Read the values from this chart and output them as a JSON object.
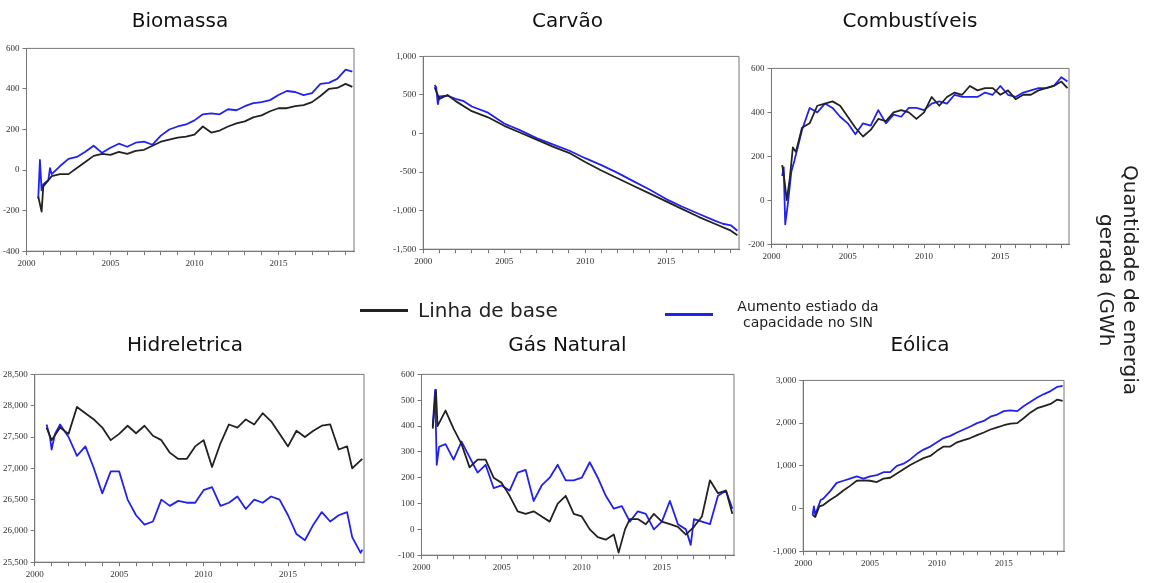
{
  "chart_data": [
    {
      "type": "line",
      "title": "Biomassa",
      "xlim": [
        2000,
        2019.5
      ],
      "ylim": [
        -400,
        600
      ],
      "yticks": [
        -400,
        -200,
        0,
        200,
        400,
        600
      ],
      "xticks": [
        2000,
        {
          "value": 2001,
          "label": null
        },
        {
          "value": 2002,
          "label": null
        },
        {
          "value": 2003,
          "label": null
        },
        {
          "value": 2004,
          "label": null
        },
        2005,
        {
          "value": 2006,
          "label": null
        },
        {
          "value": 2007,
          "label": null
        },
        {
          "value": 2008,
          "label": null
        },
        {
          "value": 2009,
          "label": null
        },
        2010,
        {
          "value": 2011,
          "label": null
        },
        {
          "value": 2012,
          "label": null
        },
        {
          "value": 2013,
          "label": null
        },
        {
          "value": 2014,
          "label": null
        },
        2015,
        {
          "value": 2016,
          "label": null
        },
        {
          "value": 2017,
          "label": null
        },
        {
          "value": 2018,
          "label": null
        },
        {
          "value": 2019,
          "label": null
        }
      ],
      "series": [
        {
          "color": "#222222",
          "x": [
            2000.7,
            2000.9,
            2001.0,
            2001.5,
            2002,
            2002.5,
            2003,
            2003.5,
            2004,
            2004.5,
            2005,
            2005.5,
            2006,
            2006.5,
            2007,
            2007.5,
            2008,
            2008.5,
            2009,
            2009.5,
            2010,
            2010.5,
            2011,
            2011.5,
            2012,
            2012.5,
            2013,
            2013.5,
            2014,
            2014.5,
            2015,
            2015.5,
            2016,
            2016.5,
            2017,
            2017.5,
            2018,
            2018.5,
            2019,
            2019.4
          ],
          "values": [
            -130,
            -205,
            -80,
            -30,
            -20,
            -20,
            10,
            40,
            70,
            80,
            75,
            90,
            80,
            95,
            100,
            120,
            140,
            150,
            160,
            165,
            175,
            215,
            185,
            195,
            215,
            230,
            240,
            260,
            270,
            290,
            305,
            305,
            315,
            320,
            335,
            365,
            400,
            405,
            425,
            410
          ]
        },
        {
          "color": "#2222ee",
          "x": [
            2000.7,
            2000.8,
            2000.9,
            2001.0,
            2001.3,
            2001.4,
            2001.5,
            2002,
            2002.5,
            2003,
            2003.5,
            2004,
            2004.5,
            2005,
            2005.5,
            2006,
            2006.5,
            2007,
            2007.5,
            2008,
            2008.5,
            2009,
            2009.5,
            2010,
            2010.5,
            2011,
            2011.5,
            2012,
            2012.5,
            2013,
            2013.5,
            2014,
            2014.5,
            2015,
            2015.5,
            2016,
            2016.5,
            2017,
            2017.5,
            2018,
            2018.5,
            2019,
            2019.4
          ],
          "values": [
            -140,
            50,
            -100,
            -70,
            -50,
            10,
            -20,
            20,
            55,
            65,
            90,
            120,
            85,
            110,
            130,
            115,
            135,
            140,
            125,
            170,
            200,
            215,
            225,
            245,
            275,
            280,
            275,
            300,
            295,
            315,
            330,
            335,
            345,
            370,
            390,
            385,
            370,
            380,
            425,
            430,
            450,
            495,
            485
          ]
        }
      ]
    },
    {
      "type": "line",
      "title": "Carvão",
      "xlim": [
        2000,
        2019.5
      ],
      "ylim": [
        -1500,
        1000
      ],
      "yticks": [
        {
          "value": -1500,
          "label": "-1,500"
        },
        {
          "value": -1000,
          "label": "-1,000"
        },
        -500,
        0,
        500,
        {
          "value": 1000,
          "label": "1,000"
        }
      ],
      "xticks": [
        2000,
        {
          "value": 2001,
          "label": null
        },
        {
          "value": 2002,
          "label": null
        },
        {
          "value": 2003,
          "label": null
        },
        {
          "value": 2004,
          "label": null
        },
        2005,
        {
          "value": 2006,
          "label": null
        },
        {
          "value": 2007,
          "label": null
        },
        {
          "value": 2008,
          "label": null
        },
        {
          "value": 2009,
          "label": null
        },
        2010,
        {
          "value": 2011,
          "label": null
        },
        {
          "value": 2012,
          "label": null
        },
        {
          "value": 2013,
          "label": null
        },
        {
          "value": 2014,
          "label": null
        },
        2015,
        {
          "value": 2016,
          "label": null
        },
        {
          "value": 2017,
          "label": null
        },
        {
          "value": 2018,
          "label": null
        },
        {
          "value": 2019,
          "label": null
        }
      ],
      "legend": "bottom",
      "series": [
        {
          "name": "Linha de base",
          "color": "#222222",
          "x": [
            2000.7,
            2001.0,
            2001.5,
            2002,
            2003,
            2004,
            2005,
            2006,
            2007,
            2008,
            2009,
            2010,
            2011,
            2012,
            2013,
            2014,
            2015,
            2016,
            2017,
            2018,
            2019,
            2019.4
          ],
          "values": [
            600,
            450,
            500,
            420,
            290,
            210,
            100,
            10,
            -80,
            -170,
            -250,
            -370,
            -480,
            -580,
            -680,
            -780,
            -880,
            -980,
            -1080,
            -1170,
            -1260,
            -1320
          ]
        },
        {
          "name": "Aumento estiado da capacidade no SIN",
          "color": "#2222ee",
          "x": [
            2000.7,
            2000.8,
            2000.9,
            2001.0,
            2001.5,
            2002,
            2002.5,
            2003,
            2004,
            2005,
            2006,
            2007,
            2008,
            2009,
            2010,
            2011,
            2012,
            2013,
            2014,
            2015,
            2016,
            2017,
            2018,
            2018.5,
            2019,
            2019.4
          ],
          "values": [
            630,
            600,
            380,
            480,
            490,
            450,
            420,
            350,
            270,
            130,
            40,
            -60,
            -140,
            -220,
            -320,
            -410,
            -510,
            -620,
            -730,
            -850,
            -950,
            -1040,
            -1130,
            -1170,
            -1190,
            -1260
          ]
        }
      ]
    },
    {
      "type": "line",
      "title": "Combustíveis",
      "ylabel": "Quantidade de energia gerada  (GWh",
      "xlim": [
        2000,
        2019.5
      ],
      "ylim": [
        -200,
        600
      ],
      "yticks": [
        -200,
        0,
        200,
        400,
        600
      ],
      "xticks": [
        2000,
        {
          "value": 2001,
          "label": null
        },
        {
          "value": 2002,
          "label": null
        },
        {
          "value": 2003,
          "label": null
        },
        {
          "value": 2004,
          "label": null
        },
        2005,
        {
          "value": 2006,
          "label": null
        },
        {
          "value": 2007,
          "label": null
        },
        {
          "value": 2008,
          "label": null
        },
        {
          "value": 2009,
          "label": null
        },
        2010,
        {
          "value": 2011,
          "label": null
        },
        {
          "value": 2012,
          "label": null
        },
        {
          "value": 2013,
          "label": null
        },
        {
          "value": 2014,
          "label": null
        },
        2015,
        {
          "value": 2016,
          "label": null
        },
        {
          "value": 2017,
          "label": null
        },
        {
          "value": 2018,
          "label": null
        },
        {
          "value": 2019,
          "label": null
        }
      ],
      "series": [
        {
          "color": "#222222",
          "x": [
            2000.7,
            2000.8,
            2001.0,
            2001.2,
            2001.4,
            2001.6,
            2002,
            2002.5,
            2003,
            2003.5,
            2004,
            2004.5,
            2005,
            2005.5,
            2006,
            2006.5,
            2007,
            2007.5,
            2008,
            2008.5,
            2009,
            2009.5,
            2010,
            2010.5,
            2011,
            2011.5,
            2012,
            2012.5,
            2013,
            2013.5,
            2014,
            2014.5,
            2015,
            2015.5,
            2016,
            2016.5,
            2017,
            2017.5,
            2018,
            2018.5,
            2019,
            2019.4
          ],
          "values": [
            160,
            120,
            0,
            100,
            240,
            220,
            330,
            350,
            430,
            440,
            450,
            430,
            380,
            330,
            290,
            320,
            370,
            360,
            400,
            410,
            400,
            370,
            400,
            470,
            430,
            470,
            490,
            480,
            520,
            500,
            510,
            510,
            480,
            500,
            460,
            480,
            480,
            500,
            510,
            520,
            540,
            510
          ]
        },
        {
          "color": "#2222ee",
          "x": [
            2000.7,
            2000.8,
            2000.9,
            2001.1,
            2001.3,
            2001.5,
            2002,
            2002.5,
            2003,
            2003.5,
            2004,
            2004.5,
            2005,
            2005.5,
            2006,
            2006.5,
            2007,
            2007.5,
            2008,
            2008.5,
            2009,
            2009.5,
            2010,
            2010.5,
            2011,
            2011.5,
            2012,
            2012.5,
            2013,
            2013.5,
            2014,
            2014.5,
            2015,
            2015.5,
            2016,
            2016.5,
            2017,
            2017.5,
            2018,
            2018.5,
            2019,
            2019.4
          ],
          "values": [
            110,
            150,
            -110,
            0,
            130,
            180,
            320,
            420,
            400,
            440,
            420,
            380,
            350,
            300,
            350,
            340,
            410,
            350,
            390,
            380,
            420,
            420,
            410,
            440,
            450,
            440,
            480,
            470,
            470,
            470,
            490,
            480,
            520,
            480,
            470,
            490,
            500,
            510,
            510,
            520,
            560,
            540
          ]
        }
      ]
    },
    {
      "type": "line",
      "title": "Hidreletrica",
      "xlim": [
        2000,
        2019.5
      ],
      "ylim": [
        25500,
        28500
      ],
      "yticks": [
        {
          "value": 25500,
          "label": "25,500"
        },
        {
          "value": 26000,
          "label": "26,000"
        },
        {
          "value": 26500,
          "label": "26,500"
        },
        {
          "value": 27000,
          "label": "27,000"
        },
        {
          "value": 27500,
          "label": "27,500"
        },
        {
          "value": 28000,
          "label": "28,000"
        },
        {
          "value": 28500,
          "label": "28,500"
        }
      ],
      "xticks": [
        2000,
        {
          "value": 2001,
          "label": null
        },
        {
          "value": 2002,
          "label": null
        },
        {
          "value": 2003,
          "label": null
        },
        {
          "value": 2004,
          "label": null
        },
        2005,
        {
          "value": 2006,
          "label": null
        },
        {
          "value": 2007,
          "label": null
        },
        {
          "value": 2008,
          "label": null
        },
        {
          "value": 2009,
          "label": null
        },
        2010,
        {
          "value": 2011,
          "label": null
        },
        {
          "value": 2012,
          "label": null
        },
        {
          "value": 2013,
          "label": null
        },
        {
          "value": 2014,
          "label": null
        },
        2015,
        {
          "value": 2016,
          "label": null
        },
        {
          "value": 2017,
          "label": null
        },
        {
          "value": 2018,
          "label": null
        },
        {
          "value": 2019,
          "label": null
        }
      ],
      "series": [
        {
          "color": "#222222",
          "x": [
            2000.7,
            2001,
            2001.5,
            2002,
            2002.5,
            2003,
            2003.5,
            2004,
            2004.5,
            2005,
            2005.5,
            2006,
            2006.5,
            2007,
            2007.5,
            2008,
            2008.5,
            2009,
            2009.5,
            2010,
            2010.5,
            2011,
            2011.5,
            2012,
            2012.5,
            2013,
            2013.5,
            2014,
            2014.5,
            2015,
            2015.5,
            2016,
            2016.5,
            2017,
            2017.5,
            2018,
            2018.5,
            2018.8,
            2019,
            2019.4
          ],
          "values": [
            27650,
            27450,
            27650,
            27550,
            27980,
            27880,
            27780,
            27650,
            27450,
            27550,
            27680,
            27560,
            27680,
            27520,
            27450,
            27250,
            27150,
            27150,
            27350,
            27450,
            27020,
            27400,
            27700,
            27650,
            27780,
            27700,
            27880,
            27750,
            27550,
            27350,
            27600,
            27500,
            27600,
            27680,
            27700,
            27300,
            27350,
            27000,
            27050,
            27150
          ]
        },
        {
          "color": "#2222ee",
          "x": [
            2000.7,
            2000.9,
            2001,
            2001.2,
            2001.5,
            2002,
            2002.5,
            2003,
            2003.5,
            2004,
            2004.5,
            2005,
            2005.5,
            2006,
            2006.5,
            2007,
            2007.5,
            2008,
            2008.5,
            2009,
            2009.5,
            2010,
            2010.5,
            2011,
            2011.5,
            2012,
            2012.5,
            2013,
            2013.5,
            2014,
            2014.5,
            2015,
            2015.5,
            2016,
            2016.5,
            2017,
            2017.5,
            2018,
            2018.5,
            2018.8,
            2019,
            2019.3,
            2019.4
          ],
          "values": [
            27700,
            27500,
            27300,
            27550,
            27700,
            27500,
            27200,
            27350,
            27000,
            26600,
            26950,
            26950,
            26500,
            26250,
            26100,
            26150,
            26500,
            26400,
            26480,
            26450,
            26450,
            26650,
            26700,
            26400,
            26450,
            26550,
            26350,
            26500,
            26450,
            26550,
            26500,
            26250,
            25950,
            25850,
            26100,
            26300,
            26150,
            26250,
            26300,
            25900,
            25800,
            25650,
            25700
          ]
        }
      ]
    },
    {
      "type": "line",
      "title": "Gás Natural",
      "xlim": [
        2000,
        2019.5
      ],
      "ylim": [
        -100,
        600
      ],
      "yticks": [
        -100,
        0,
        100,
        200,
        300,
        400,
        500,
        600
      ],
      "xticks": [
        2000,
        {
          "value": 2001,
          "label": null
        },
        {
          "value": 2002,
          "label": null
        },
        {
          "value": 2003,
          "label": null
        },
        {
          "value": 2004,
          "label": null
        },
        2005,
        {
          "value": 2006,
          "label": null
        },
        {
          "value": 2007,
          "label": null
        },
        {
          "value": 2008,
          "label": null
        },
        {
          "value": 2009,
          "label": null
        },
        2010,
        {
          "value": 2011,
          "label": null
        },
        {
          "value": 2012,
          "label": null
        },
        {
          "value": 2013,
          "label": null
        },
        {
          "value": 2014,
          "label": null
        },
        2015,
        {
          "value": 2016,
          "label": null
        },
        {
          "value": 2017,
          "label": null
        },
        {
          "value": 2018,
          "label": null
        },
        {
          "value": 2019,
          "label": null
        }
      ],
      "series": [
        {
          "color": "#222222",
          "x": [
            2000.7,
            2000.9,
            2001.0,
            2001.5,
            2002,
            2002.5,
            2003,
            2003.5,
            2004,
            2004.5,
            2005,
            2005.5,
            2006,
            2006.5,
            2007,
            2007.5,
            2008,
            2008.5,
            2009,
            2009.5,
            2010,
            2010.5,
            2011,
            2011.5,
            2012,
            2012.3,
            2012.7,
            2013,
            2013.5,
            2014,
            2014.5,
            2015,
            2015.5,
            2016,
            2016.5,
            2017,
            2017.5,
            2018,
            2018.5,
            2019,
            2019.4
          ],
          "values": [
            390,
            540,
            400,
            460,
            390,
            330,
            240,
            270,
            270,
            200,
            180,
            130,
            70,
            60,
            70,
            50,
            30,
            100,
            130,
            60,
            50,
            0,
            -30,
            -40,
            -20,
            -90,
            0,
            40,
            40,
            20,
            60,
            30,
            20,
            10,
            -20,
            10,
            50,
            190,
            140,
            150,
            60
          ]
        },
        {
          "color": "#2222ee",
          "x": [
            2000.7,
            2000.85,
            2000.95,
            2001.1,
            2001.5,
            2002,
            2002.5,
            2003,
            2003.5,
            2004,
            2004.5,
            2005,
            2005.5,
            2006,
            2006.5,
            2007,
            2007.5,
            2008,
            2008.5,
            2009,
            2009.5,
            2010,
            2010.5,
            2011,
            2011.5,
            2012,
            2012.5,
            2013,
            2013.5,
            2014,
            2014.5,
            2015,
            2015.5,
            2016,
            2016.5,
            2016.8,
            2017,
            2017.5,
            2018,
            2018.5,
            2019,
            2019.4
          ],
          "values": [
            400,
            540,
            250,
            320,
            330,
            270,
            340,
            280,
            220,
            250,
            160,
            170,
            150,
            220,
            230,
            110,
            170,
            200,
            250,
            190,
            190,
            200,
            260,
            200,
            130,
            80,
            90,
            30,
            70,
            60,
            0,
            30,
            110,
            20,
            0,
            -60,
            40,
            30,
            20,
            130,
            150,
            80
          ]
        }
      ]
    },
    {
      "type": "line",
      "title": "Eólica",
      "xlim": [
        2000,
        2019.5
      ],
      "ylim": [
        -1000,
        3000
      ],
      "yticks": [
        {
          "value": -1000,
          "label": "-1,000"
        },
        0,
        {
          "value": 1000,
          "label": "1,000"
        },
        {
          "value": 2000,
          "label": "2,000"
        },
        {
          "value": 3000,
          "label": "3,000"
        }
      ],
      "xticks": [
        2000,
        {
          "value": 2001,
          "label": null
        },
        {
          "value": 2002,
          "label": null
        },
        {
          "value": 2003,
          "label": null
        },
        {
          "value": 2004,
          "label": null
        },
        2005,
        {
          "value": 2006,
          "label": null
        },
        {
          "value": 2007,
          "label": null
        },
        {
          "value": 2008,
          "label": null
        },
        {
          "value": 2009,
          "label": null
        },
        2010,
        {
          "value": 2011,
          "label": null
        },
        {
          "value": 2012,
          "label": null
        },
        {
          "value": 2013,
          "label": null
        },
        {
          "value": 2014,
          "label": null
        },
        2015,
        {
          "value": 2016,
          "label": null
        },
        {
          "value": 2017,
          "label": null
        },
        {
          "value": 2018,
          "label": null
        },
        {
          "value": 2019,
          "label": null
        }
      ],
      "series": [
        {
          "color": "#222222",
          "x": [
            2000.7,
            2000.9,
            2001.2,
            2001.5,
            2002,
            2002.5,
            2003,
            2003.5,
            2004,
            2004.5,
            2005,
            2005.5,
            2006,
            2006.5,
            2007,
            2007.5,
            2008,
            2008.5,
            2009,
            2009.5,
            2010,
            2010.5,
            2011,
            2011.5,
            2012,
            2012.5,
            2013,
            2013.5,
            2014,
            2014.5,
            2015,
            2015.5,
            2016,
            2016.5,
            2017,
            2017.5,
            2018,
            2018.5,
            2019,
            2019.4
          ],
          "values": [
            -150,
            -200,
            50,
            80,
            200,
            300,
            420,
            530,
            650,
            660,
            650,
            620,
            700,
            720,
            820,
            920,
            1020,
            1100,
            1180,
            1230,
            1350,
            1450,
            1450,
            1550,
            1600,
            1650,
            1720,
            1780,
            1850,
            1900,
            1950,
            1990,
            2000,
            2120,
            2250,
            2350,
            2400,
            2450,
            2550,
            2520
          ]
        },
        {
          "color": "#2222ee",
          "x": [
            2000.7,
            2000.8,
            2000.9,
            2001.3,
            2001.5,
            2002,
            2002.5,
            2003,
            2003.5,
            2004,
            2004.5,
            2005,
            2005.5,
            2006,
            2006.5,
            2007,
            2007.5,
            2008,
            2008.5,
            2009,
            2009.5,
            2010,
            2010.5,
            2011,
            2011.5,
            2012,
            2012.5,
            2013,
            2013.5,
            2014,
            2014.5,
            2015,
            2015.5,
            2016,
            2016.5,
            2017,
            2017.5,
            2018,
            2018.5,
            2019,
            2019.4
          ],
          "values": [
            -150,
            50,
            -150,
            200,
            230,
            400,
            600,
            650,
            700,
            750,
            700,
            750,
            780,
            850,
            850,
            1000,
            1050,
            1150,
            1280,
            1380,
            1450,
            1550,
            1650,
            1700,
            1780,
            1850,
            1920,
            2000,
            2050,
            2150,
            2200,
            2280,
            2300,
            2280,
            2400,
            2500,
            2600,
            2680,
            2750,
            2850,
            2870
          ]
        }
      ]
    }
  ]
}
